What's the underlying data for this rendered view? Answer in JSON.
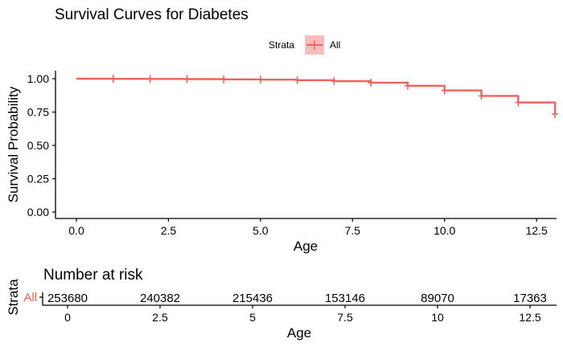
{
  "chart_data": [
    {
      "type": "line",
      "subtype": "step",
      "title": "Survival Curves for Diabetes",
      "xlabel": "Age",
      "ylabel": "Survival Probability",
      "xlim": [
        0,
        13
      ],
      "ylim": [
        0,
        1
      ],
      "xticks": [
        "0.0",
        "2.5",
        "5.0",
        "7.5",
        "10.0",
        "12.5"
      ],
      "xtick_values": [
        0,
        2.5,
        5,
        7.5,
        10,
        12.5
      ],
      "yticks": [
        "0.00",
        "0.25",
        "0.50",
        "0.75",
        "1.00"
      ],
      "ytick_values": [
        0,
        0.25,
        0.5,
        0.75,
        1.0
      ],
      "legend": {
        "title": "Strata",
        "position": "top-center",
        "entries": [
          "All"
        ]
      },
      "series": [
        {
          "name": "All",
          "color": "#f0625c",
          "ci_color": "#f8bcbc",
          "steps": [
            {
              "x": 0,
              "y": 1.0
            },
            {
              "x": 1,
              "y": 0.999
            },
            {
              "x": 2,
              "y": 0.998
            },
            {
              "x": 3,
              "y": 0.997
            },
            {
              "x": 4,
              "y": 0.995
            },
            {
              "x": 5,
              "y": 0.993
            },
            {
              "x": 6,
              "y": 0.989
            },
            {
              "x": 7,
              "y": 0.982
            },
            {
              "x": 8,
              "y": 0.97
            },
            {
              "x": 9,
              "y": 0.947
            },
            {
              "x": 10,
              "y": 0.912
            },
            {
              "x": 11,
              "y": 0.871
            },
            {
              "x": 12,
              "y": 0.822
            },
            {
              "x": 13,
              "y": 0.735
            }
          ],
          "censor_marks": [
            {
              "x": 1,
              "y": 0.999
            },
            {
              "x": 2,
              "y": 0.998
            },
            {
              "x": 3,
              "y": 0.997
            },
            {
              "x": 4,
              "y": 0.995
            },
            {
              "x": 5,
              "y": 0.993
            },
            {
              "x": 6,
              "y": 0.989
            },
            {
              "x": 7,
              "y": 0.982
            },
            {
              "x": 8,
              "y": 0.97
            },
            {
              "x": 9,
              "y": 0.947
            },
            {
              "x": 10,
              "y": 0.912
            },
            {
              "x": 11,
              "y": 0.871
            },
            {
              "x": 12,
              "y": 0.822
            },
            {
              "x": 13,
              "y": 0.735
            }
          ]
        }
      ]
    },
    {
      "type": "table",
      "title": "Number at risk",
      "xlabel": "Age",
      "ylabel": "Strata",
      "xlim": [
        0,
        13
      ],
      "xticks": [
        "0",
        "2.5",
        "5",
        "7.5",
        "10",
        "12.5"
      ],
      "xtick_values": [
        0,
        2.5,
        5,
        7.5,
        10,
        12.5
      ],
      "rows": [
        {
          "label": "All",
          "color": "#f0625c",
          "values": [
            {
              "x": 0,
              "n": "253680"
            },
            {
              "x": 2.5,
              "n": "240382"
            },
            {
              "x": 5,
              "n": "215436"
            },
            {
              "x": 7.5,
              "n": "153146"
            },
            {
              "x": 10,
              "n": "89070"
            },
            {
              "x": 12.5,
              "n": "17363"
            }
          ]
        }
      ]
    }
  ]
}
